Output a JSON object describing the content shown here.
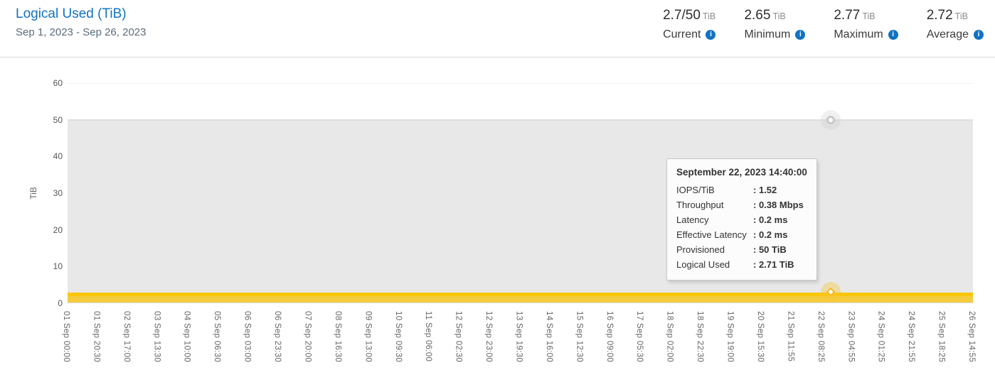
{
  "header": {
    "title": "Logical Used (TiB)",
    "date_range": "Sep 1, 2023 - Sep 26, 2023",
    "stats": [
      {
        "value": "2.7/50",
        "unit": "TiB",
        "label": "Current"
      },
      {
        "value": "2.65",
        "unit": "TiB",
        "label": "Minimum"
      },
      {
        "value": "2.77",
        "unit": "TiB",
        "label": "Maximum"
      },
      {
        "value": "2.72",
        "unit": "TiB",
        "label": "Average"
      }
    ],
    "info_icon_glyph": "i"
  },
  "colors": {
    "accent_blue": "#1272c4",
    "provisioned_fill": "#e8e8e8",
    "provisioned_edge": "#dfdfdf",
    "logical_used_line": "#fbc60a",
    "logical_used_fill": "#f5cc3e"
  },
  "chart_data": {
    "type": "area",
    "title": "Logical Used (TiB)",
    "xlabel": "",
    "ylabel": "TiB",
    "ylim": [
      0,
      60
    ],
    "yticks": [
      0,
      10,
      20,
      30,
      40,
      50,
      60
    ],
    "grid": true,
    "legend": false,
    "x": [
      "01 Sep 00:00",
      "01 Sep 20:30",
      "02 Sep 17:00",
      "03 Sep 13:30",
      "04 Sep 10:00",
      "05 Sep 06:30",
      "06 Sep 03:00",
      "06 Sep 23:30",
      "07 Sep 20:00",
      "08 Sep 16:30",
      "09 Sep 13:00",
      "10 Sep 09:30",
      "11 Sep 06:00",
      "12 Sep 02:30",
      "12 Sep 23:00",
      "13 Sep 19:30",
      "14 Sep 16:00",
      "15 Sep 12:30",
      "16 Sep 09:00",
      "17 Sep 05:30",
      "18 Sep 02:00",
      "18 Sep 22:30",
      "19 Sep 19:00",
      "20 Sep 15:30",
      "21 Sep 11:55",
      "22 Sep 08:25",
      "23 Sep 04:55",
      "24 Sep 01:25",
      "24 Sep 21:55",
      "25 Sep 18:25",
      "26 Sep 14:55"
    ],
    "series": [
      {
        "name": "Provisioned",
        "line_color": "#dfdfdf",
        "fill_color": "#e8e8e8",
        "values": [
          50,
          50,
          50,
          50,
          50,
          50,
          50,
          50,
          50,
          50,
          50,
          50,
          50,
          50,
          50,
          50,
          50,
          50,
          50,
          50,
          50,
          50,
          50,
          50,
          50,
          50,
          50,
          50,
          50,
          50,
          50
        ]
      },
      {
        "name": "Logical Used",
        "line_color": "#fbc60a",
        "fill_color": "#f5cc3e",
        "values": [
          2.7,
          2.71,
          2.65,
          2.7,
          2.71,
          2.72,
          2.7,
          2.69,
          2.71,
          2.7,
          2.72,
          2.77,
          2.71,
          2.7,
          2.69,
          2.7,
          2.71,
          2.72,
          2.7,
          2.71,
          2.7,
          2.72,
          2.71,
          2.7,
          2.71,
          2.71,
          2.7,
          2.71,
          2.7,
          2.71,
          2.72
        ]
      }
    ]
  },
  "tooltip": {
    "title": "September 22, 2023 14:40:00",
    "rows": [
      {
        "label": "IOPS/TiB",
        "value": "1.52"
      },
      {
        "label": "Throughput",
        "value": "0.38 Mbps"
      },
      {
        "label": "Latency",
        "value": "0.2 ms"
      },
      {
        "label": "Effective Latency",
        "value": "0.2 ms"
      },
      {
        "label": "Provisioned",
        "value": "50 TiB"
      },
      {
        "label": "Logical Used",
        "value": "2.71 TiB"
      }
    ]
  }
}
